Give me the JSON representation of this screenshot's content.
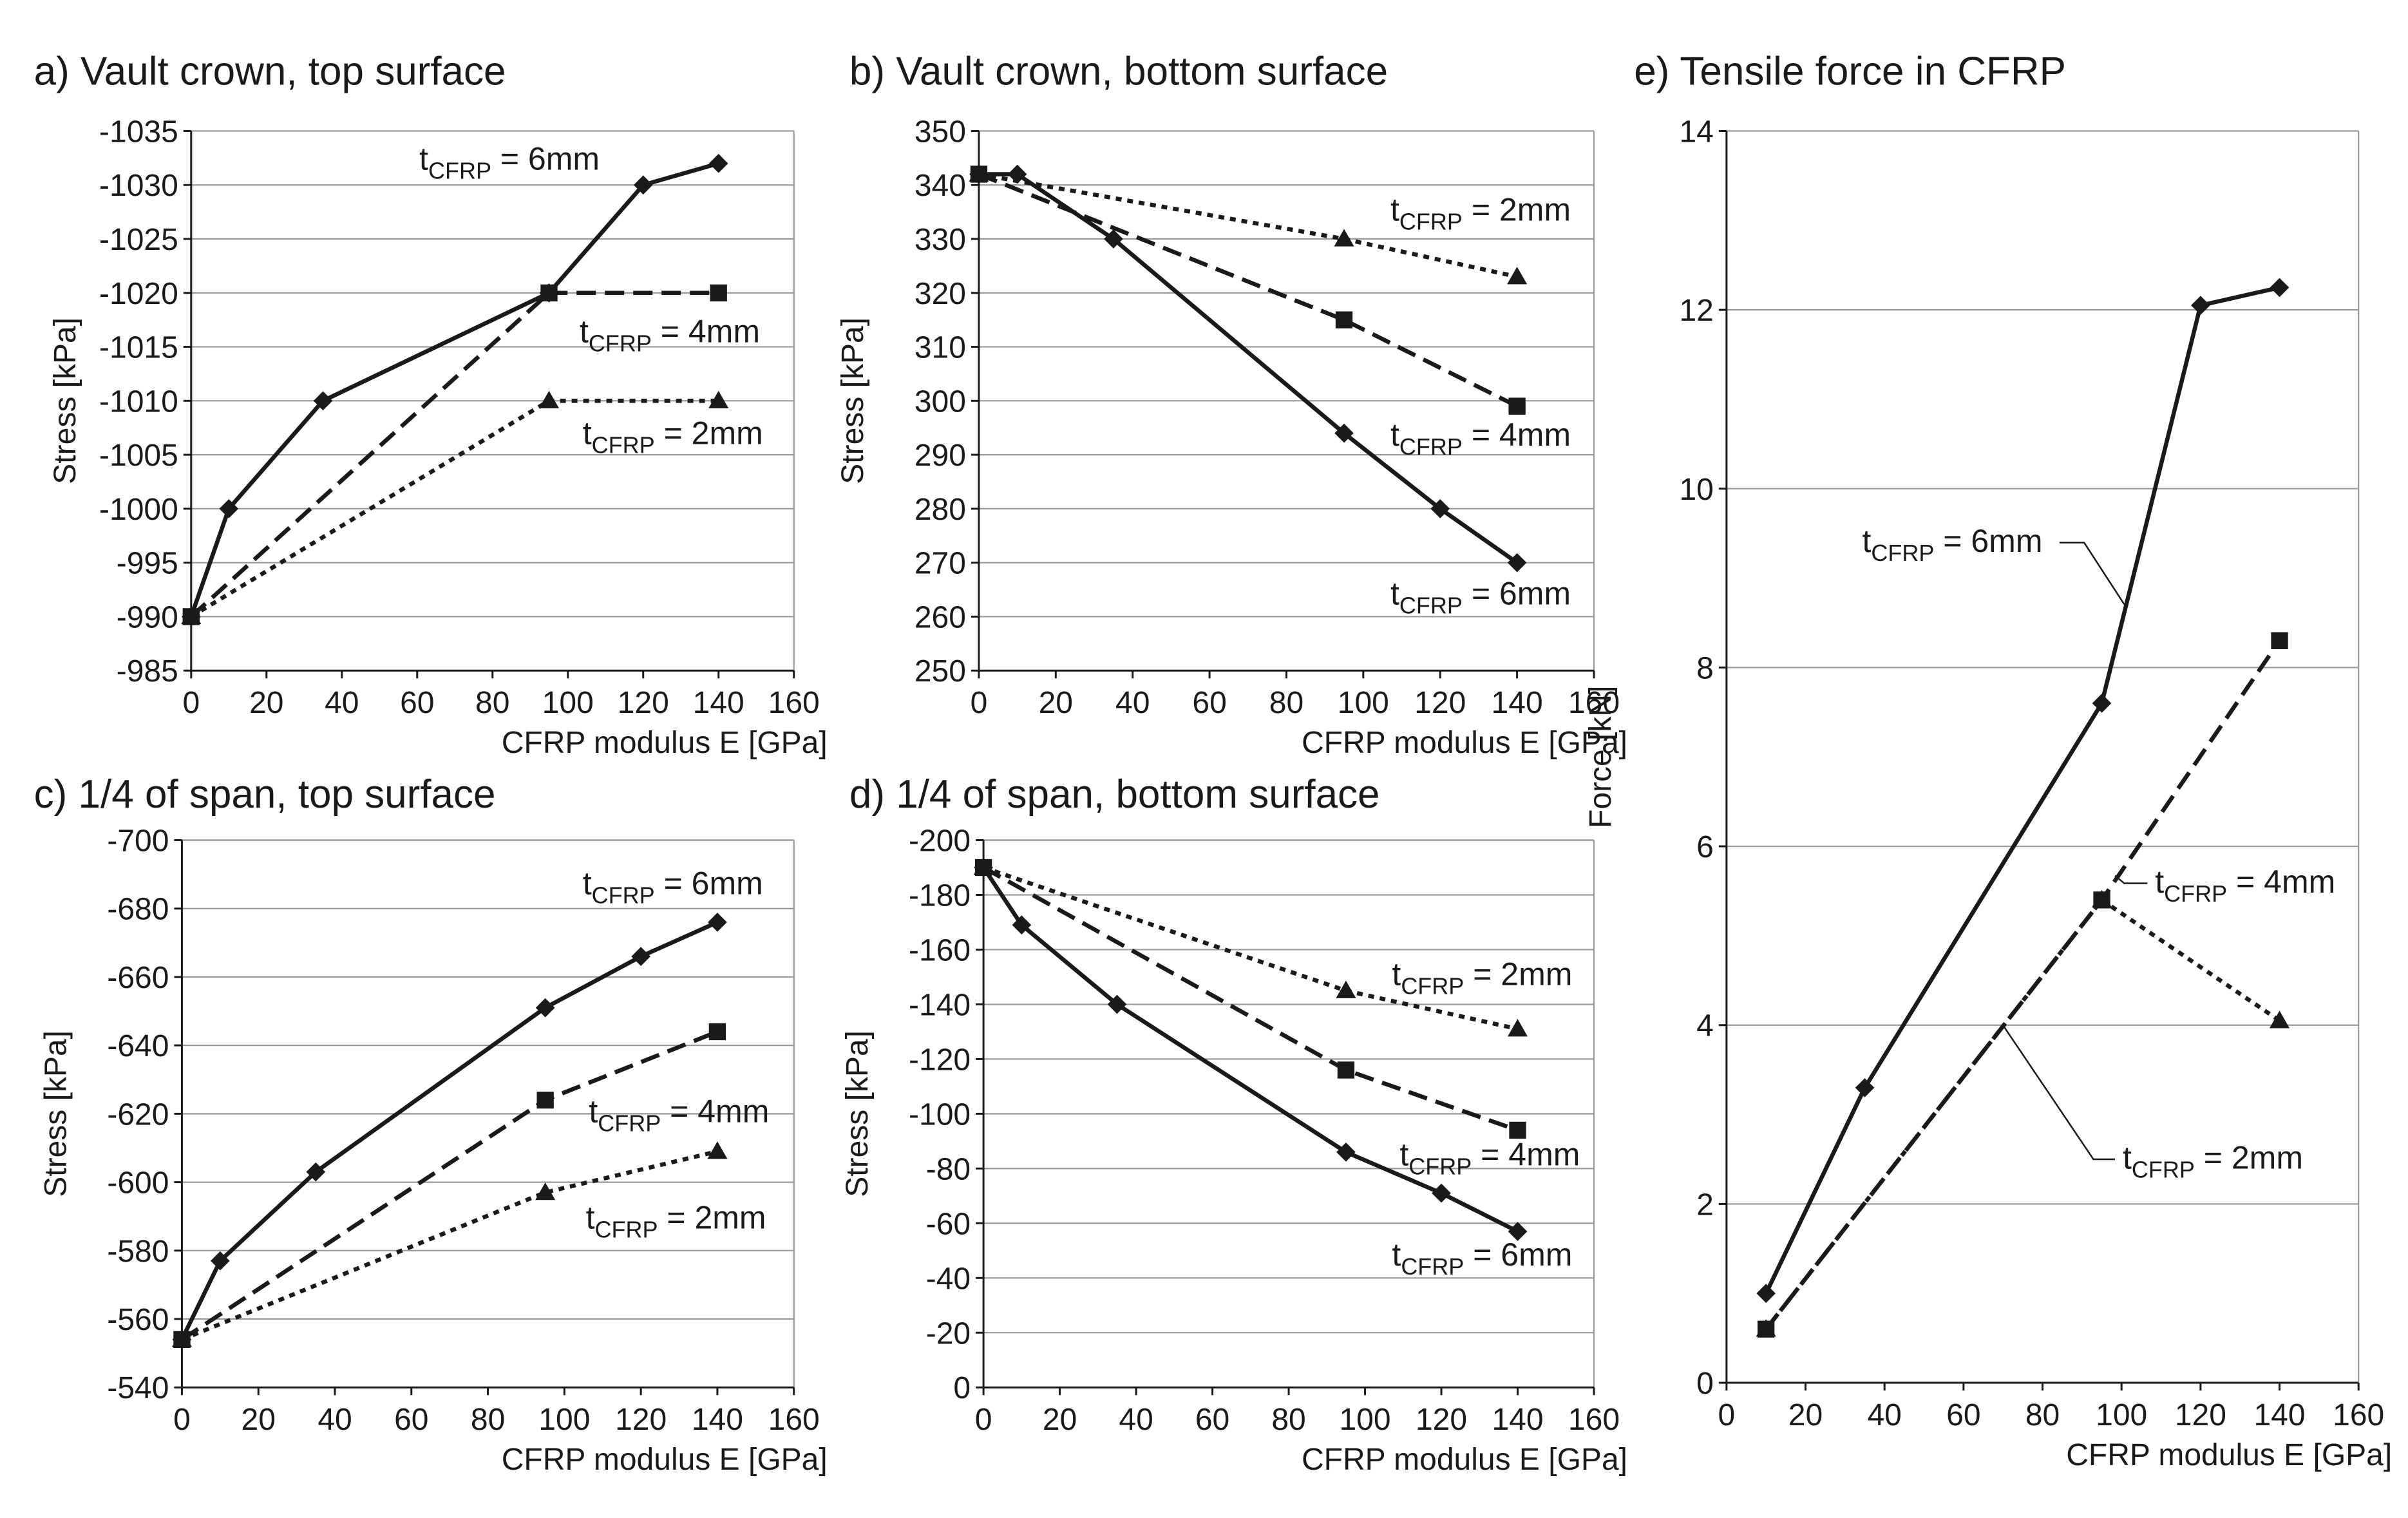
{
  "figure": {
    "series_styles": {
      "6mm": {
        "dash": "none",
        "marker": "diamond",
        "color": "#1a1a1a"
      },
      "4mm": {
        "dash": "long-dash",
        "marker": "square",
        "color": "#1a1a1a"
      },
      "2mm": {
        "dash": "dotted",
        "marker": "triangle",
        "color": "#1a1a1a"
      }
    }
  },
  "chart_data": [
    {
      "id": "a",
      "type": "line",
      "title": "a) Vault crown, top surface",
      "xlabel": "CFRP modulus E [GPa]",
      "ylabel": "Stress [kPa]",
      "xlim": [
        0,
        160
      ],
      "xticks": [
        0,
        20,
        40,
        60,
        80,
        100,
        120,
        140,
        160
      ],
      "ylim": [
        -985,
        -1035
      ],
      "yticks": [
        -985,
        -990,
        -995,
        -1000,
        -1005,
        -1010,
        -1015,
        -1020,
        -1025,
        -1030,
        -1035
      ],
      "grid": true,
      "series": [
        {
          "name": "6mm",
          "t_main": "t",
          "t_sub": "CFRP",
          "t_rest": " = 6mm",
          "x": [
            0,
            10,
            35,
            95,
            120,
            140
          ],
          "y": [
            -990,
            -1000,
            -1010,
            -1020,
            -1030,
            -1032
          ]
        },
        {
          "name": "4mm",
          "t_main": "t",
          "t_sub": "CFRP",
          "t_rest": " = 4mm",
          "x": [
            0,
            95,
            140
          ],
          "y": [
            -990,
            -1020,
            -1020
          ]
        },
        {
          "name": "2mm",
          "t_main": "t",
          "t_sub": "CFRP",
          "t_rest": " = 2mm",
          "x": [
            0,
            95,
            140
          ],
          "y": [
            -990,
            -1010,
            -1010
          ]
        }
      ]
    },
    {
      "id": "b",
      "type": "line",
      "title": "b) Vault crown, bottom surface",
      "xlabel": "CFRP modulus E [GPa]",
      "ylabel": "Stress [kPa]",
      "xlim": [
        0,
        160
      ],
      "xticks": [
        0,
        20,
        40,
        60,
        80,
        100,
        120,
        140,
        160
      ],
      "ylim": [
        250,
        350
      ],
      "yticks": [
        250,
        260,
        270,
        280,
        290,
        300,
        310,
        320,
        330,
        340,
        350
      ],
      "grid": true,
      "series": [
        {
          "name": "2mm",
          "t_main": "t",
          "t_sub": "CFRP",
          "t_rest": " = 2mm",
          "x": [
            0,
            95,
            140
          ],
          "y": [
            342,
            330,
            323
          ]
        },
        {
          "name": "4mm",
          "t_main": "t",
          "t_sub": "CFRP",
          "t_rest": " = 4mm",
          "x": [
            0,
            95,
            140
          ],
          "y": [
            342,
            315,
            299
          ]
        },
        {
          "name": "6mm",
          "t_main": "t",
          "t_sub": "CFRP",
          "t_rest": " = 6mm",
          "x": [
            0,
            10,
            35,
            95,
            120,
            140
          ],
          "y": [
            342,
            342,
            330,
            294,
            280,
            270
          ]
        }
      ]
    },
    {
      "id": "c",
      "type": "line",
      "title": "c) 1/4 of span, top surface",
      "xlabel": "CFRP modulus E [GPa]",
      "ylabel": "Stress [kPa]",
      "xlim": [
        0,
        160
      ],
      "xticks": [
        0,
        20,
        40,
        60,
        80,
        100,
        120,
        140,
        160
      ],
      "ylim": [
        -540,
        -700
      ],
      "yticks": [
        -540,
        -560,
        -580,
        -600,
        -620,
        -640,
        -660,
        -680,
        -700
      ],
      "grid": true,
      "series": [
        {
          "name": "6mm",
          "t_main": "t",
          "t_sub": "CFRP",
          "t_rest": " = 6mm",
          "x": [
            0,
            10,
            35,
            95,
            120,
            140
          ],
          "y": [
            -554,
            -577,
            -603,
            -651,
            -666,
            -676
          ]
        },
        {
          "name": "4mm",
          "t_main": "t",
          "t_sub": "CFRP",
          "t_rest": " = 4mm",
          "x": [
            0,
            95,
            140
          ],
          "y": [
            -554,
            -624,
            -644
          ]
        },
        {
          "name": "2mm",
          "t_main": "t",
          "t_sub": "CFRP",
          "t_rest": " = 2mm",
          "x": [
            0,
            95,
            140
          ],
          "y": [
            -554,
            -597,
            -609
          ]
        }
      ]
    },
    {
      "id": "d",
      "type": "line",
      "title": "d) 1/4 of span, bottom surface",
      "xlabel": "CFRP modulus E [GPa]",
      "ylabel": "Stress [kPa]",
      "xlim": [
        0,
        160
      ],
      "xticks": [
        0,
        20,
        40,
        60,
        80,
        100,
        120,
        140,
        160
      ],
      "ylim": [
        0,
        -200
      ],
      "yticks": [
        0,
        -20,
        -40,
        -60,
        -80,
        -100,
        -120,
        -140,
        -160,
        -180,
        -200
      ],
      "grid": true,
      "series": [
        {
          "name": "2mm",
          "t_main": "t",
          "t_sub": "CFRP",
          "t_rest": " = 2mm",
          "x": [
            0,
            95,
            140
          ],
          "y": [
            -190,
            -145,
            -131
          ]
        },
        {
          "name": "4mm",
          "t_main": "t",
          "t_sub": "CFRP",
          "t_rest": " = 4mm",
          "x": [
            0,
            95,
            140
          ],
          "y": [
            -190,
            -116,
            -94
          ]
        },
        {
          "name": "6mm",
          "t_main": "t",
          "t_sub": "CFRP",
          "t_rest": " = 6mm",
          "x": [
            0,
            10,
            35,
            95,
            120,
            140
          ],
          "y": [
            -190,
            -169,
            -140,
            -86,
            -71,
            -57
          ]
        }
      ]
    },
    {
      "id": "e",
      "type": "line",
      "title": "e) Tensile force in CFRP",
      "xlabel": "CFRP modulus E [GPa]",
      "ylabel": "Force [kN]",
      "xlim": [
        0,
        160
      ],
      "xticks": [
        0,
        20,
        40,
        60,
        80,
        100,
        120,
        140,
        160
      ],
      "ylim": [
        0,
        14
      ],
      "yticks": [
        0,
        2,
        4,
        6,
        8,
        10,
        12,
        14
      ],
      "grid": true,
      "series": [
        {
          "name": "6mm",
          "t_main": "t",
          "t_sub": "CFRP",
          "t_rest": " = 6mm",
          "x": [
            10,
            35,
            95,
            120,
            140
          ],
          "y": [
            1.0,
            3.3,
            7.6,
            12.05,
            12.25
          ]
        },
        {
          "name": "4mm",
          "t_main": "t",
          "t_sub": "CFRP",
          "t_rest": " = 4mm",
          "x": [
            10,
            95,
            140
          ],
          "y": [
            0.6,
            5.4,
            8.3
          ]
        },
        {
          "name": "2mm",
          "t_main": "t",
          "t_sub": "CFRP",
          "t_rest": " = 2mm",
          "x": [
            10,
            95,
            140
          ],
          "y": [
            0.6,
            5.4,
            4.05
          ]
        }
      ]
    }
  ]
}
